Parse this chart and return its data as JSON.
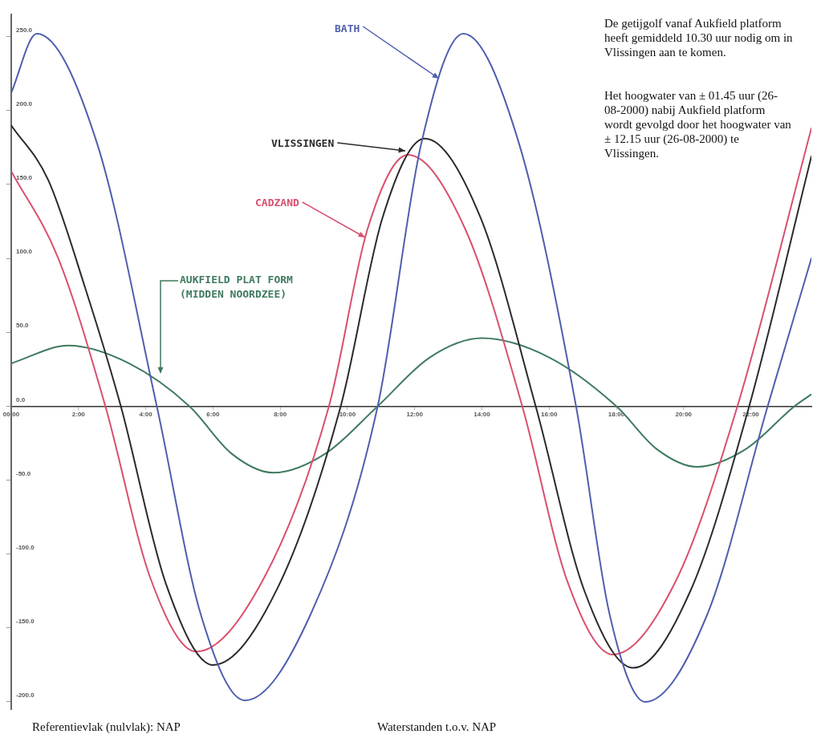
{
  "chart_data": {
    "type": "line",
    "xlim": [
      0,
      23.8
    ],
    "ylim": [
      -205,
      265
    ],
    "xticks": [
      {
        "value": 0,
        "label": "00:00"
      },
      {
        "value": 2,
        "label": "2:00"
      },
      {
        "value": 4,
        "label": "4:00"
      },
      {
        "value": 6,
        "label": "6:00"
      },
      {
        "value": 8,
        "label": "8:00"
      },
      {
        "value": 10,
        "label": "10:00"
      },
      {
        "value": 12,
        "label": "12:00"
      },
      {
        "value": 14,
        "label": "14:00"
      },
      {
        "value": 16,
        "label": "16:00"
      },
      {
        "value": 18,
        "label": "18:00"
      },
      {
        "value": 20,
        "label": "20:00"
      },
      {
        "value": 22,
        "label": "22:00"
      }
    ],
    "yticks": [
      {
        "value": 250,
        "label": "250.0"
      },
      {
        "value": 200,
        "label": "200.0"
      },
      {
        "value": 150,
        "label": "150.0"
      },
      {
        "value": 100,
        "label": "100.0"
      },
      {
        "value": 50,
        "label": "50.0"
      },
      {
        "value": 0,
        "label": "0.0"
      },
      {
        "value": -50,
        "label": "-50.0"
      },
      {
        "value": -100,
        "label": "-100.0"
      },
      {
        "value": -150,
        "label": "-150.0"
      },
      {
        "value": -200,
        "label": "-200.0"
      }
    ],
    "grid": false,
    "legend": false,
    "marker": "none",
    "line_style": "solid",
    "series": [
      {
        "name": "BATH",
        "color": "#4f5fae",
        "x": [
          0,
          0.76,
          2.55,
          4.33,
          5.64,
          6.95,
          8.9,
          10.9,
          12.2,
          13.45,
          15.1,
          16.8,
          17.8,
          18.86,
          20.7,
          22.5,
          23.8
        ],
        "values": [
          212,
          252,
          178,
          0,
          -141,
          -199,
          -141,
          0,
          178,
          252,
          178,
          0,
          -141,
          -200,
          -141,
          0,
          100
        ]
      },
      {
        "name": "VLISSINGEN",
        "color": "#2b2b2b",
        "x": [
          0,
          1.1,
          2.2,
          3.26,
          4.6,
          6.0,
          7.9,
          9.8,
          11.05,
          12.3,
          13.95,
          15.6,
          17.05,
          18.5,
          20.2,
          21.95,
          23.8
        ],
        "values": [
          190,
          153,
          80,
          0,
          -120,
          -175,
          -124,
          0,
          128,
          181,
          128,
          0,
          -125,
          -177,
          -125,
          0,
          169
        ]
      },
      {
        "name": "CADZAND",
        "color": "#d9506e",
        "x": [
          0,
          1.4,
          2.8,
          4.15,
          5.5,
          7.5,
          9.45,
          10.6,
          11.8,
          13.5,
          15.2,
          16.55,
          17.9,
          19.75,
          21.6,
          23.8
        ],
        "values": [
          159,
          100,
          0,
          -117,
          -166,
          -117,
          0,
          120,
          170,
          120,
          0,
          -119,
          -168,
          -119,
          0,
          188
        ]
      },
      {
        "name": "AUKFIELD PLAT FORM (MIDDEN NOORDZEE)",
        "color": "#3f7a5e",
        "x": [
          0,
          1.7,
          3.5,
          5.3,
          6.55,
          7.8,
          9.35,
          10.9,
          12.45,
          14,
          16,
          18,
          19.2,
          20.4,
          21.85,
          23.3,
          23.8
        ],
        "values": [
          29,
          41,
          29,
          0,
          -32,
          -45,
          -32,
          0,
          33,
          46,
          33,
          0,
          -29,
          -41,
          -29,
          0,
          8
        ]
      }
    ],
    "annotations": [
      "De getijgolf vanaf Aukfield platform heeft gemiddeld 10.30 uur nodig om in Vlissingen aan te komen.",
      "Het hoogwater van ± 01.45 uur (26-08-2000) nabij Aukfield platform wordt gevolgd door het hoogwater van ± 12.15 uur (26-08-2000) te Vlissingen.",
      "Referentievlak (nulvlak): NAP",
      "Waterstanden t.o.v. NAP"
    ]
  }
}
